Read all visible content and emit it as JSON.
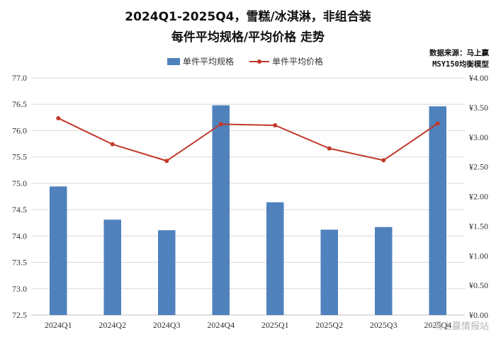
{
  "chart_data": {
    "type": "bar+line",
    "title_line1": "2024Q1-2025Q4，雪糕/冰淇淋，非组合装",
    "title_line2": "每件平均规格/平均价格 走势",
    "categories": [
      "2024Q1",
      "2024Q2",
      "2024Q3",
      "2024Q4",
      "2025Q1",
      "2025Q2",
      "2025Q3",
      "2025Q4"
    ],
    "series": [
      {
        "name": "单件平均规格",
        "kind": "bar",
        "axis": "left",
        "color": "#4f81bd",
        "values": [
          74.94,
          74.31,
          74.11,
          76.48,
          74.64,
          74.12,
          74.17,
          76.46
        ]
      },
      {
        "name": "单件平均价格",
        "kind": "line",
        "axis": "right",
        "color": "#c0392b",
        "values": [
          3.32,
          2.88,
          2.6,
          3.22,
          3.2,
          2.81,
          2.61,
          3.23
        ]
      }
    ],
    "y_left": {
      "min": 72.5,
      "max": 77.0,
      "step": 0.5,
      "ticks": [
        "72.5",
        "73.0",
        "73.5",
        "74.0",
        "74.5",
        "75.0",
        "75.5",
        "76.0",
        "76.5",
        "77.0"
      ]
    },
    "y_right": {
      "min": 0,
      "max": 4.0,
      "step": 0.5,
      "ticks": [
        "¥0.00",
        "¥0.50",
        "¥1.00",
        "¥1.50",
        "¥2.00",
        "¥2.50",
        "¥3.00",
        "¥3.50",
        "¥4.00"
      ]
    },
    "legend_position": "top-center",
    "grid": true
  },
  "source_line1": "数据来源：马上赢",
  "source_line2": "MSY150均衡模型",
  "watermark_text": "马上赢情报站",
  "colors": {
    "bar": "#4f81bd",
    "line": "#c0392b",
    "grid": "#d9d9d9"
  }
}
